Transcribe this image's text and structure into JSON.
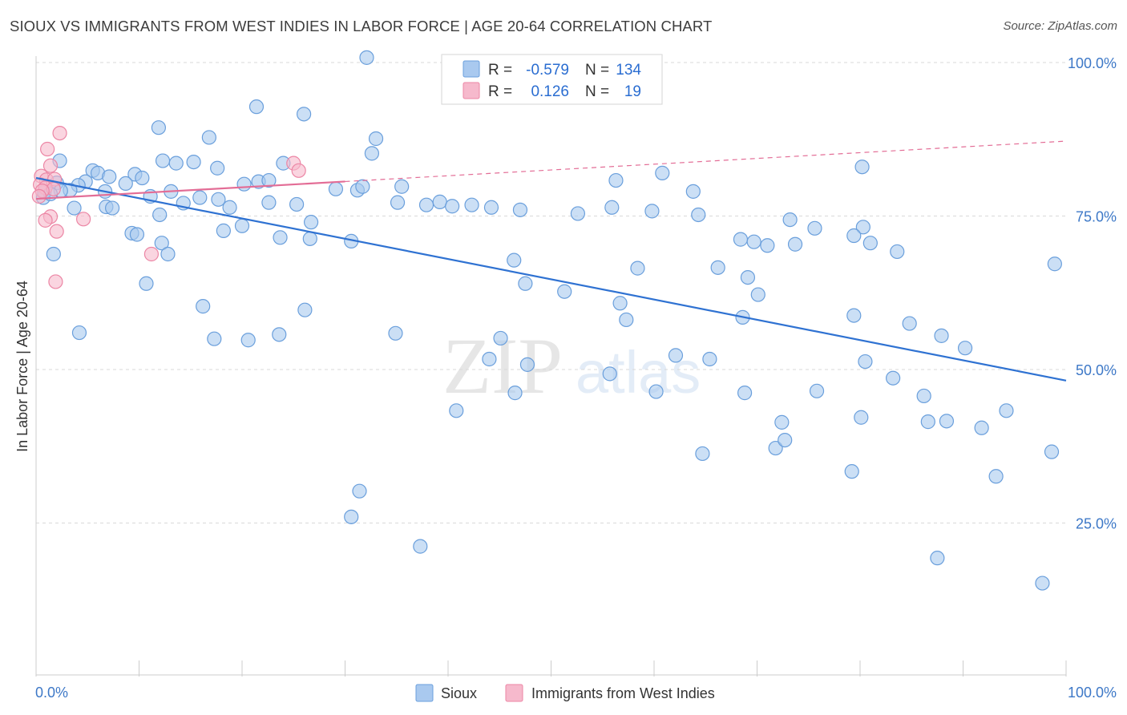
{
  "title": "SIOUX VS IMMIGRANTS FROM WEST INDIES IN LABOR FORCE | AGE 20-64 CORRELATION CHART",
  "source": "Source: ZipAtlas.com",
  "watermark": {
    "zip": "ZIP",
    "atlas": "atlas"
  },
  "colors": {
    "blue_fill": "#a9c9ef",
    "blue_stroke": "#6a9fdc",
    "blue_line": "#2f72d2",
    "pink_fill": "#f6b9cc",
    "pink_stroke": "#ec86a5",
    "pink_line": "#e36d96",
    "axis_text": "#3d78c7",
    "grid": "#d9d9d9"
  },
  "legend_top": [
    {
      "series": "Sioux",
      "r_label": "R =",
      "r_value": "-0.579",
      "n_label": "N =",
      "n_value": "134"
    },
    {
      "series": "Immigrants from West Indies",
      "r_label": "R =",
      "r_value": "0.126",
      "n_label": "N =",
      "n_value": "19"
    }
  ],
  "chart_data": {
    "type": "scatter",
    "title": "SIOUX VS IMMIGRANTS FROM WEST INDIES IN LABOR FORCE | AGE 20-64 CORRELATION CHART",
    "xlabel": "",
    "ylabel": "In Labor Force | Age 20-64",
    "xlim": [
      0,
      100
    ],
    "ylim": [
      0,
      100
    ],
    "x_tick_labels": [
      "0.0%",
      "100.0%"
    ],
    "y_ticks": [
      25,
      50,
      75,
      100
    ],
    "y_tick_labels": [
      "25.0%",
      "50.0%",
      "75.0%",
      "100.0%"
    ],
    "grid": true,
    "legend_position": "bottom",
    "series": [
      {
        "name": "Sioux",
        "trend": {
          "x": [
            0,
            100
          ],
          "y": [
            81.2,
            48.2
          ]
        },
        "points": [
          [
            32.1,
            100.8
          ],
          [
            21.4,
            92.8
          ],
          [
            26,
            91.6
          ],
          [
            11.9,
            89.4
          ],
          [
            16.8,
            87.8
          ],
          [
            33,
            87.6
          ],
          [
            32.6,
            85.2
          ],
          [
            2.3,
            84
          ],
          [
            12.3,
            84
          ],
          [
            13.6,
            83.6
          ],
          [
            15.3,
            83.8
          ],
          [
            24,
            83.6
          ],
          [
            5.5,
            82.4
          ],
          [
            6,
            82
          ],
          [
            7.1,
            81.4
          ],
          [
            9.6,
            81.8
          ],
          [
            10.3,
            81.2
          ],
          [
            17.6,
            82.8
          ],
          [
            60.8,
            82
          ],
          [
            80.2,
            83
          ],
          [
            4.8,
            80.6
          ],
          [
            2,
            80.4
          ],
          [
            4.1,
            80
          ],
          [
            8.7,
            80.3
          ],
          [
            3.3,
            79.2
          ],
          [
            20.2,
            80.2
          ],
          [
            21.6,
            80.6
          ],
          [
            22.6,
            80.8
          ],
          [
            29.1,
            79.4
          ],
          [
            31.2,
            79.2
          ],
          [
            31.7,
            79.8
          ],
          [
            35.5,
            79.8
          ],
          [
            56.3,
            80.8
          ],
          [
            63.8,
            79
          ],
          [
            2.4,
            79.1
          ],
          [
            0.7,
            78
          ],
          [
            0.8,
            78.9
          ],
          [
            1.4,
            78.6
          ],
          [
            6.7,
            79
          ],
          [
            13.1,
            79
          ],
          [
            17.7,
            77.7
          ],
          [
            11.1,
            78.2
          ],
          [
            15.9,
            78
          ],
          [
            3.7,
            76.3
          ],
          [
            6.8,
            76.5
          ],
          [
            7.4,
            76.3
          ],
          [
            12,
            75.2
          ],
          [
            14.3,
            77.1
          ],
          [
            18.8,
            76.4
          ],
          [
            22.6,
            77.2
          ],
          [
            25.3,
            76.9
          ],
          [
            35.1,
            77.2
          ],
          [
            37.9,
            76.8
          ],
          [
            39.2,
            77.3
          ],
          [
            40.4,
            76.6
          ],
          [
            42.3,
            76.8
          ],
          [
            44.2,
            76.4
          ],
          [
            47,
            76
          ],
          [
            52.6,
            75.4
          ],
          [
            55.9,
            76.4
          ],
          [
            59.8,
            75.8
          ],
          [
            64.3,
            75.2
          ],
          [
            80.3,
            73.2
          ],
          [
            9.3,
            72.2
          ],
          [
            20,
            73.4
          ],
          [
            26.7,
            74
          ],
          [
            73.2,
            74.4
          ],
          [
            75.6,
            73
          ],
          [
            79.4,
            71.8
          ],
          [
            9.8,
            72
          ],
          [
            18.2,
            72.6
          ],
          [
            23.7,
            71.5
          ],
          [
            26.6,
            71.3
          ],
          [
            30.6,
            70.9
          ],
          [
            68.4,
            71.2
          ],
          [
            69.7,
            70.8
          ],
          [
            71,
            70.2
          ],
          [
            81,
            70.6
          ],
          [
            73.7,
            70.4
          ],
          [
            83.6,
            69.2
          ],
          [
            1.7,
            68.8
          ],
          [
            12.2,
            70.6
          ],
          [
            12.8,
            68.8
          ],
          [
            46.4,
            67.8
          ],
          [
            58.4,
            66.5
          ],
          [
            66.2,
            66.6
          ],
          [
            69.1,
            65
          ],
          [
            10.7,
            64
          ],
          [
            47.5,
            64
          ],
          [
            51.3,
            62.7
          ],
          [
            56.7,
            60.8
          ],
          [
            70.1,
            62.2
          ],
          [
            16.2,
            60.3
          ],
          [
            26.1,
            59.7
          ],
          [
            57.3,
            58.1
          ],
          [
            68.6,
            58.5
          ],
          [
            79.4,
            58.8
          ],
          [
            4.2,
            56
          ],
          [
            17.3,
            55
          ],
          [
            20.6,
            54.8
          ],
          [
            23.6,
            55.7
          ],
          [
            34.9,
            55.9
          ],
          [
            45.1,
            55.1
          ],
          [
            84.8,
            57.5
          ],
          [
            87.9,
            55.5
          ],
          [
            90.2,
            53.5
          ],
          [
            62.1,
            52.3
          ],
          [
            44,
            51.7
          ],
          [
            47.7,
            50.8
          ],
          [
            55.7,
            49.3
          ],
          [
            65.4,
            51.7
          ],
          [
            80.5,
            51.3
          ],
          [
            83.2,
            48.6
          ],
          [
            46.5,
            46.2
          ],
          [
            60.2,
            46.4
          ],
          [
            68.8,
            46.2
          ],
          [
            75.8,
            46.5
          ],
          [
            86.2,
            45.7
          ],
          [
            40.8,
            43.3
          ],
          [
            72.4,
            41.4
          ],
          [
            80.1,
            42.2
          ],
          [
            86.6,
            41.5
          ],
          [
            88.4,
            41.6
          ],
          [
            91.8,
            40.5
          ],
          [
            94.2,
            43.3
          ],
          [
            64.7,
            36.3
          ],
          [
            71.8,
            37.2
          ],
          [
            72.7,
            38.5
          ],
          [
            79.2,
            33.4
          ],
          [
            98.6,
            36.6
          ],
          [
            31.4,
            30.2
          ],
          [
            30.6,
            26
          ],
          [
            37.3,
            21.2
          ],
          [
            87.5,
            19.3
          ],
          [
            93.2,
            32.6
          ],
          [
            97.7,
            15.2
          ],
          [
            98.9,
            67.2
          ]
        ]
      },
      {
        "name": "Immigrants from West Indies",
        "trend": {
          "x": [
            0,
            100
          ],
          "y": [
            77.8,
            87.2
          ]
        },
        "trend_solid_until": 30,
        "points": [
          [
            2.3,
            88.5
          ],
          [
            1.1,
            85.9
          ],
          [
            1.4,
            83.2
          ],
          [
            0.5,
            81.5
          ],
          [
            1,
            80.9
          ],
          [
            1.8,
            81
          ],
          [
            0.4,
            80.1
          ],
          [
            0.9,
            79.6
          ],
          [
            1.7,
            79.4
          ],
          [
            0.6,
            79.1
          ],
          [
            0.3,
            78.2
          ],
          [
            25,
            83.6
          ],
          [
            25.5,
            82.4
          ],
          [
            1.4,
            74.9
          ],
          [
            0.9,
            74.3
          ],
          [
            2,
            72.5
          ],
          [
            4.6,
            74.5
          ],
          [
            11.2,
            68.8
          ],
          [
            1.9,
            64.3
          ]
        ]
      }
    ]
  },
  "bottom_legend": [
    {
      "series": "Sioux"
    },
    {
      "series": "Immigrants from West Indies"
    }
  ]
}
